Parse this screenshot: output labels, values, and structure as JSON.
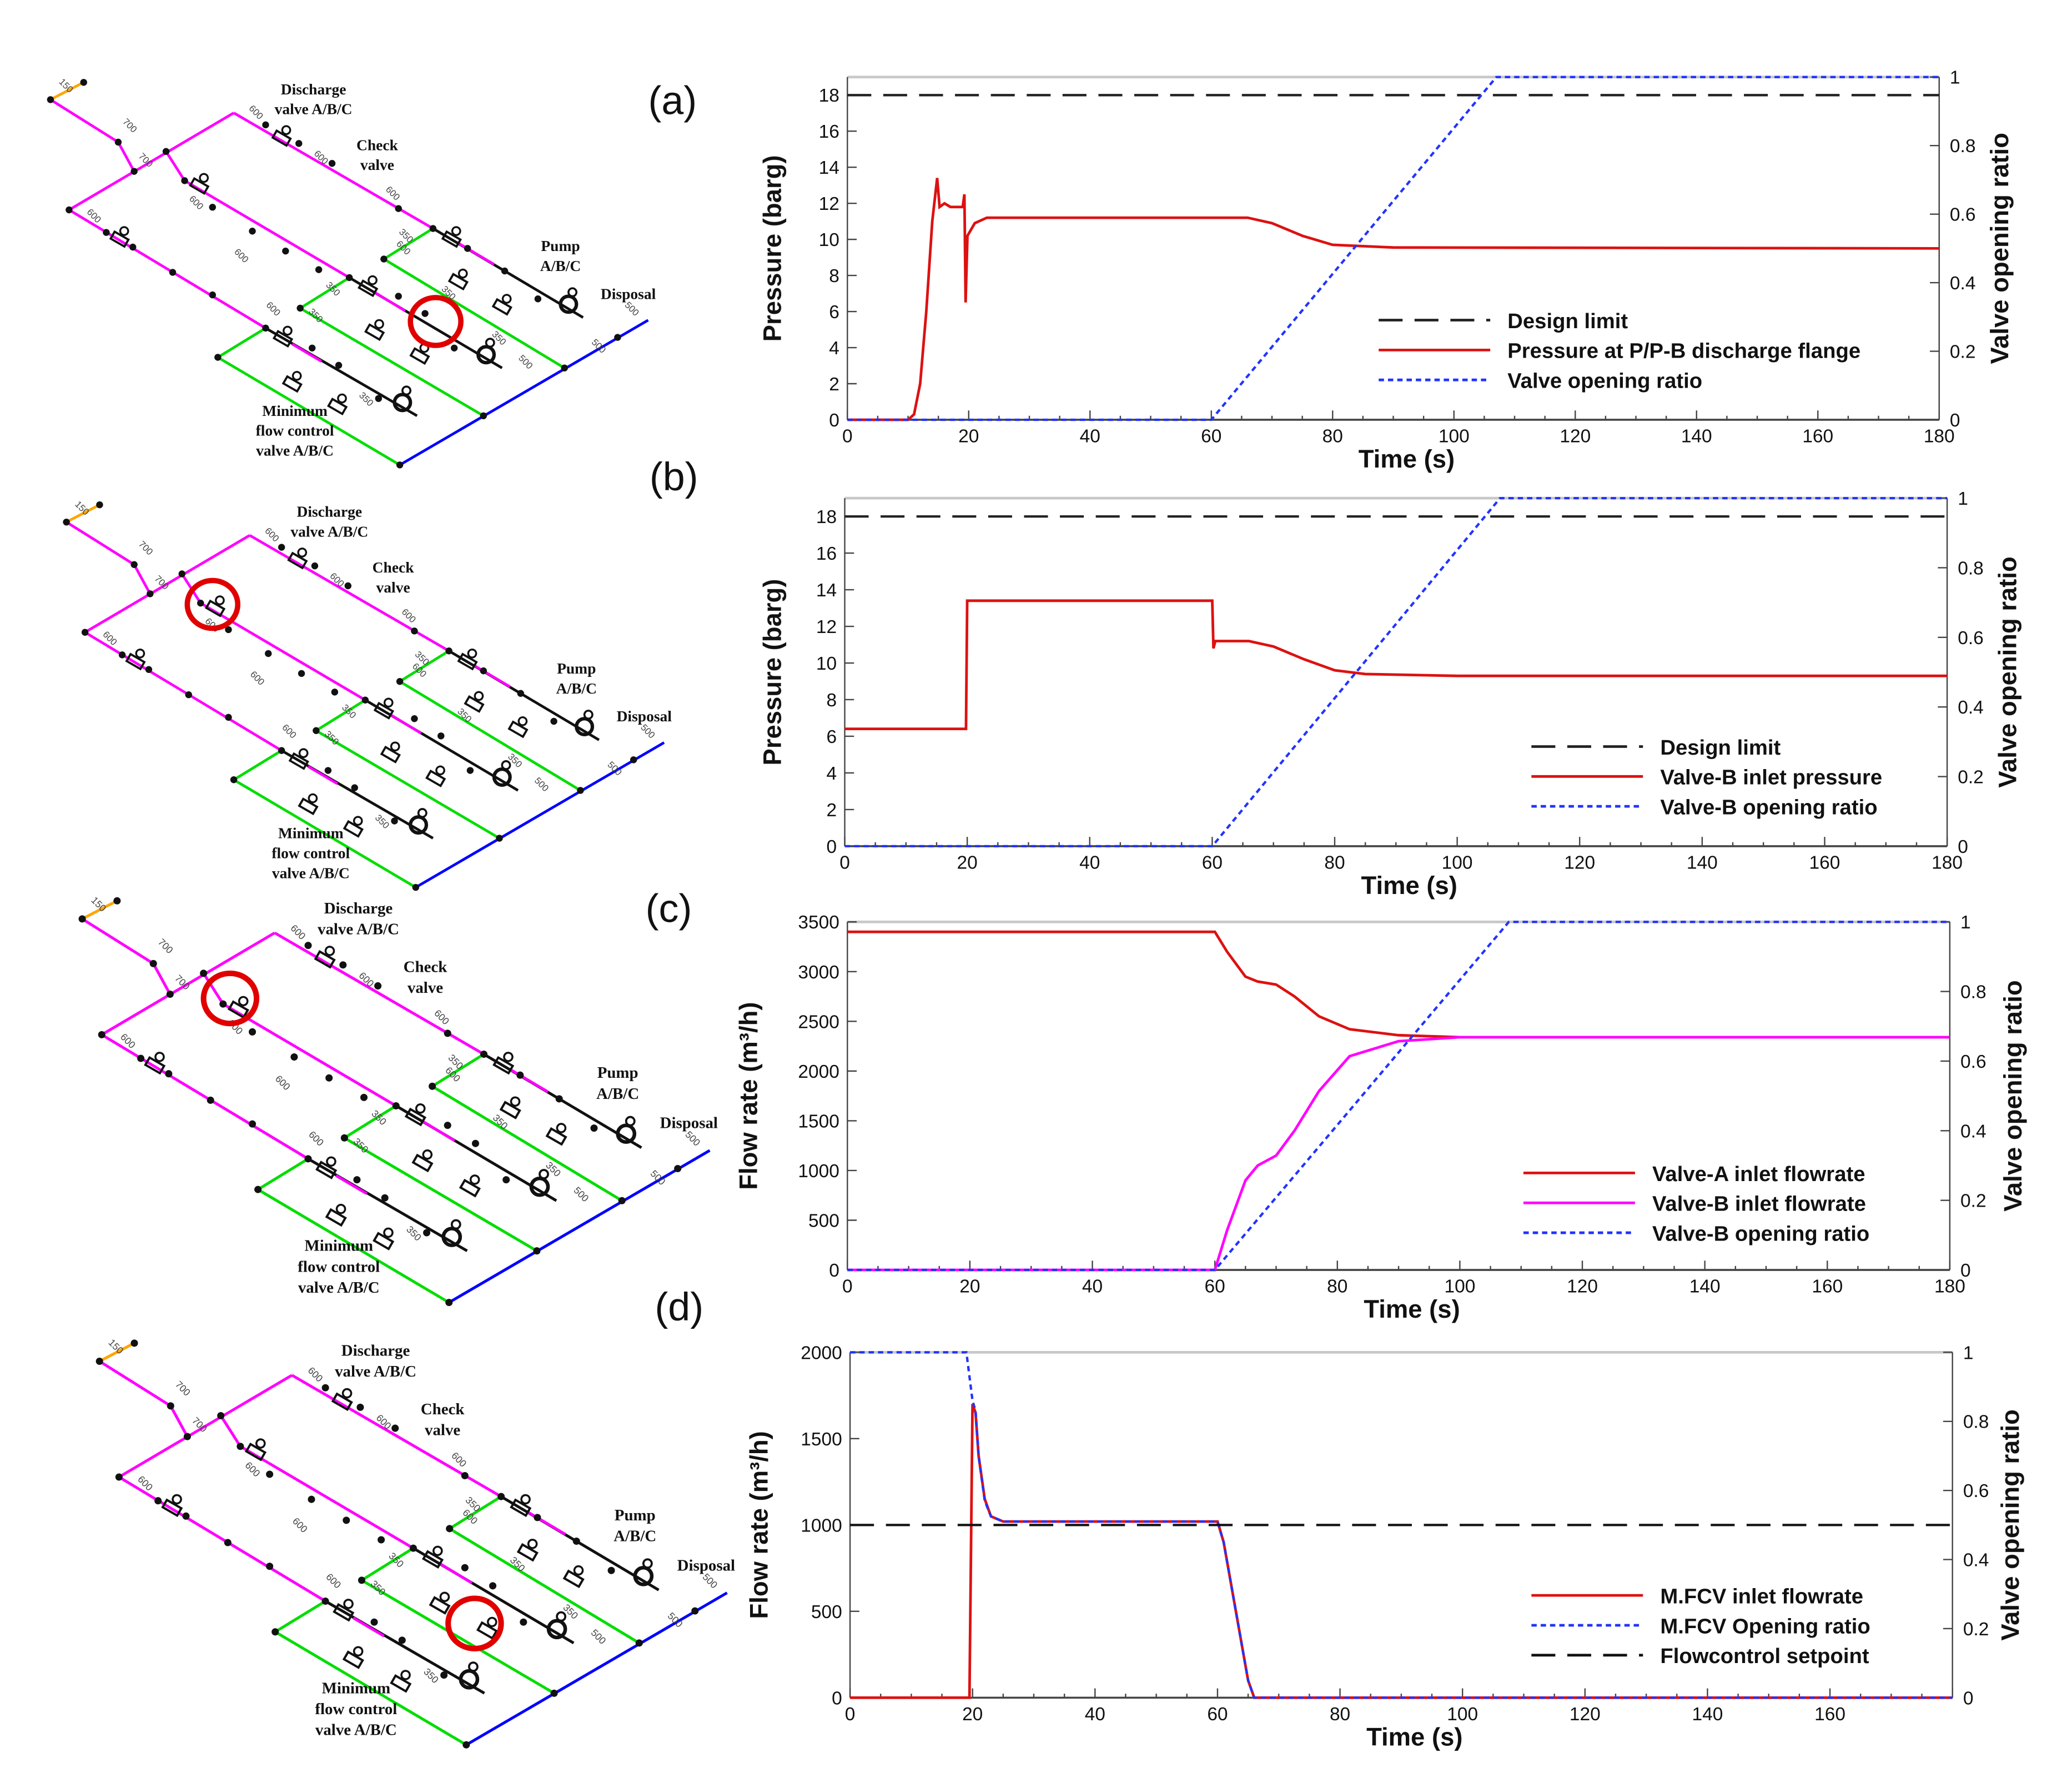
{
  "panels": [
    {
      "label": "(a)"
    },
    {
      "label": "(b)"
    },
    {
      "label": "(c)"
    },
    {
      "label": "(d)"
    }
  ],
  "diagram": {
    "labels": {
      "discharge": [
        "Discharge",
        "valve A/B/C"
      ],
      "check": [
        "Check",
        "valve"
      ],
      "pump": [
        "Pump",
        "A/B/C"
      ],
      "disposal": "Disposal",
      "mfcv": [
        "Minimum",
        "flow control",
        "valve A/B/C"
      ]
    },
    "pipe_sizes": [
      "150",
      "700",
      "700",
      "600",
      "600",
      "600",
      "600",
      "600",
      "600",
      "600",
      "600",
      "350",
      "350",
      "350",
      "350",
      "350",
      "350",
      "500",
      "500",
      "500"
    ],
    "colors": {
      "suction": "#ff00ff",
      "min_flow": "#00dd00",
      "disposal": "#0000ff",
      "vent": "#ffa500",
      "highlight": "#e00000"
    },
    "highlight_component": [
      "Pump B discharge check valve",
      "Discharge valve B",
      "Discharge valve B",
      "Minimum flow control valve B"
    ]
  },
  "chart_data": [
    {
      "type": "line",
      "panel": "(a)",
      "xlabel": "Time (s)",
      "ylabel": "Pressure (barg)",
      "y2label": "Valve opening ratio",
      "xlim": [
        0,
        180
      ],
      "ylim": [
        0,
        19
      ],
      "y2lim": [
        0,
        1
      ],
      "xticks": [
        0,
        20,
        40,
        60,
        80,
        100,
        120,
        140,
        160,
        180
      ],
      "yticks": [
        0,
        2,
        4,
        6,
        8,
        10,
        12,
        14,
        16,
        18
      ],
      "y2ticks": [
        "0",
        "0.2",
        "0.4",
        "0.6",
        "0.8",
        "1"
      ],
      "legend_position": "center-right",
      "series": [
        {
          "name": "Design limit",
          "axis": "left",
          "style": "dashed",
          "color": "#222222",
          "points": [
            [
              0,
              18
            ],
            [
              180,
              18
            ]
          ]
        },
        {
          "name": "Pressure at P/P-B discharge flange",
          "axis": "left",
          "style": "solid",
          "color": "#dd1111",
          "points": [
            [
              0,
              0
            ],
            [
              10,
              0
            ],
            [
              11,
              0.3
            ],
            [
              12,
              2
            ],
            [
              13,
              6
            ],
            [
              14,
              11
            ],
            [
              14.8,
              13.4
            ],
            [
              15.2,
              11.8
            ],
            [
              16,
              12
            ],
            [
              17,
              11.8
            ],
            [
              19,
              11.8
            ],
            [
              19.3,
              12.5
            ],
            [
              19.5,
              6.5
            ],
            [
              19.8,
              10.2
            ],
            [
              21,
              10.9
            ],
            [
              23,
              11.2
            ],
            [
              60,
              11.2
            ],
            [
              66,
              11.2
            ],
            [
              70,
              10.9
            ],
            [
              75,
              10.2
            ],
            [
              80,
              9.7
            ],
            [
              90,
              9.55
            ],
            [
              180,
              9.5
            ]
          ]
        },
        {
          "name": "Valve opening ratio",
          "axis": "right",
          "style": "dotted",
          "color": "#2233ff",
          "points": [
            [
              0,
              0
            ],
            [
              60,
              0
            ],
            [
              107,
              1
            ],
            [
              180,
              1
            ]
          ]
        }
      ]
    },
    {
      "type": "line",
      "panel": "(b)",
      "xlabel": "Time (s)",
      "ylabel": "Pressure (barg)",
      "y2label": "Valve opening ratio",
      "xlim": [
        0,
        180
      ],
      "ylim": [
        0,
        19
      ],
      "y2lim": [
        0,
        1
      ],
      "xticks": [
        0,
        20,
        40,
        60,
        80,
        100,
        120,
        140,
        160,
        180
      ],
      "yticks": [
        0,
        2,
        4,
        6,
        8,
        10,
        12,
        14,
        16,
        18
      ],
      "y2ticks": [
        "0",
        "0.2",
        "0.4",
        "0.6",
        "0.8",
        "1"
      ],
      "legend_position": "bottom-right",
      "series": [
        {
          "name": "Design limit",
          "axis": "left",
          "style": "dashed",
          "color": "#222222",
          "points": [
            [
              0,
              18
            ],
            [
              180,
              18
            ]
          ]
        },
        {
          "name": "Valve-B inlet pressure",
          "axis": "left",
          "style": "solid",
          "color": "#dd1111",
          "points": [
            [
              0,
              6.4
            ],
            [
              19.8,
              6.4
            ],
            [
              20,
              13.4
            ],
            [
              60,
              13.4
            ],
            [
              60.2,
              10.8
            ],
            [
              60.5,
              11.2
            ],
            [
              66,
              11.2
            ],
            [
              70,
              10.9
            ],
            [
              75,
              10.2
            ],
            [
              80,
              9.6
            ],
            [
              85,
              9.4
            ],
            [
              100,
              9.3
            ],
            [
              180,
              9.3
            ]
          ]
        },
        {
          "name": "Valve-B opening ratio",
          "axis": "right",
          "style": "dotted",
          "color": "#2233ff",
          "points": [
            [
              0,
              0
            ],
            [
              60,
              0
            ],
            [
              107,
              1
            ],
            [
              180,
              1
            ]
          ]
        }
      ]
    },
    {
      "type": "line",
      "panel": "(c)",
      "xlabel": "Time (s)",
      "ylabel": "Flow rate (m³/h)",
      "y2label": "Valve opening ratio",
      "xlim": [
        0,
        180
      ],
      "ylim": [
        0,
        3500
      ],
      "y2lim": [
        0,
        1
      ],
      "xticks": [
        0,
        20,
        40,
        60,
        80,
        100,
        120,
        140,
        160,
        180
      ],
      "yticks": [
        0,
        500,
        1000,
        1500,
        2000,
        2500,
        3000,
        3500
      ],
      "y2ticks": [
        "0",
        "0.2",
        "0.4",
        "0.6",
        "0.8",
        "1"
      ],
      "legend_position": "bottom-right",
      "series": [
        {
          "name": "Valve-A inlet flowrate",
          "axis": "left",
          "style": "solid",
          "color": "#dd1111",
          "points": [
            [
              0,
              3400
            ],
            [
              60,
              3400
            ],
            [
              62,
              3200
            ],
            [
              65,
              2950
            ],
            [
              67,
              2900
            ],
            [
              70,
              2870
            ],
            [
              73,
              2750
            ],
            [
              77,
              2550
            ],
            [
              82,
              2420
            ],
            [
              90,
              2360
            ],
            [
              100,
              2340
            ],
            [
              180,
              2340
            ]
          ]
        },
        {
          "name": "Valve-B inlet flowrate",
          "axis": "left",
          "style": "solid",
          "color": "#ff00ff",
          "points": [
            [
              0,
              0
            ],
            [
              60,
              0
            ],
            [
              62,
              400
            ],
            [
              65,
              900
            ],
            [
              67,
              1050
            ],
            [
              70,
              1150
            ],
            [
              73,
              1400
            ],
            [
              77,
              1800
            ],
            [
              82,
              2150
            ],
            [
              90,
              2300
            ],
            [
              100,
              2340
            ],
            [
              180,
              2340
            ]
          ]
        },
        {
          "name": "Valve-B opening ratio",
          "axis": "right",
          "style": "dotted",
          "color": "#2233ff",
          "points": [
            [
              0,
              0
            ],
            [
              60,
              0
            ],
            [
              108,
              1
            ],
            [
              180,
              1
            ]
          ]
        }
      ]
    },
    {
      "type": "line",
      "panel": "(d)",
      "xlabel": "Time (s)",
      "ylabel": "Flow rate (m³/h)",
      "y2label": "Valve opening ratio",
      "xlim": [
        0,
        180
      ],
      "ylim": [
        0,
        2000
      ],
      "y2lim": [
        0,
        1
      ],
      "xticks": [
        0,
        20,
        40,
        60,
        80,
        100,
        120,
        140,
        160
      ],
      "yticks": [
        0,
        500,
        1000,
        1500,
        2000
      ],
      "y2ticks": [
        "0",
        "0.2",
        "0.4",
        "0.6",
        "0.8",
        "1"
      ],
      "legend_position": "bottom-right",
      "series": [
        {
          "name": "M.FCV inlet flowrate",
          "axis": "left",
          "style": "solid",
          "color": "#dd1111",
          "points": [
            [
              0,
              0
            ],
            [
              19.5,
              0
            ],
            [
              20,
              1700
            ],
            [
              20.5,
              1650
            ],
            [
              21,
              1400
            ],
            [
              22,
              1150
            ],
            [
              23,
              1050
            ],
            [
              25,
              1020
            ],
            [
              60,
              1020
            ],
            [
              61,
              900
            ],
            [
              63,
              500
            ],
            [
              65,
              100
            ],
            [
              66,
              0
            ],
            [
              180,
              0
            ]
          ]
        },
        {
          "name": "M.FCV Opening ratio",
          "axis": "right",
          "style": "dotted",
          "color": "#2233ff",
          "points": [
            [
              0,
              1
            ],
            [
              19,
              1
            ],
            [
              20,
              0.86
            ],
            [
              20.5,
              0.83
            ],
            [
              21,
              0.7
            ],
            [
              22,
              0.57
            ],
            [
              23,
              0.525
            ],
            [
              25,
              0.51
            ],
            [
              60,
              0.51
            ],
            [
              61,
              0.45
            ],
            [
              63,
              0.25
            ],
            [
              65,
              0.05
            ],
            [
              66,
              0
            ],
            [
              180,
              0
            ]
          ]
        },
        {
          "name": "Flowcontrol setpoint",
          "axis": "left",
          "style": "dashed",
          "color": "#111111",
          "points": [
            [
              0,
              1000
            ],
            [
              180,
              1000
            ]
          ]
        }
      ]
    }
  ]
}
